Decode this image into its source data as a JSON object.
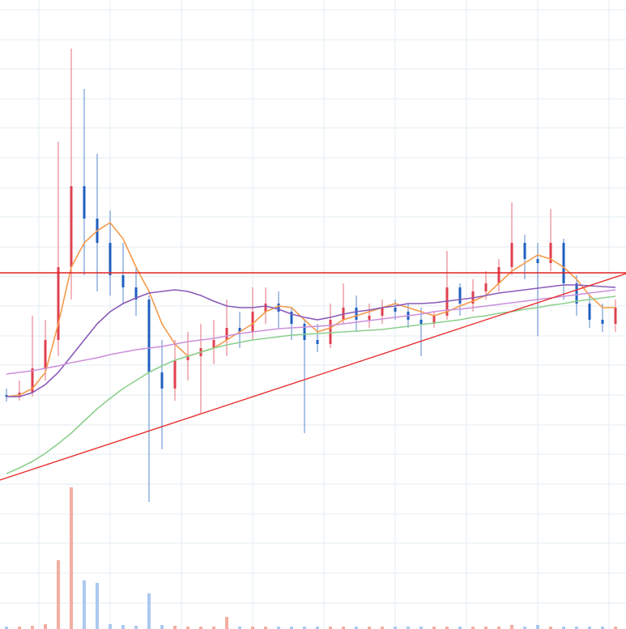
{
  "chart_data": {
    "type": "candlestick",
    "categories": [
      null,
      null,
      null,
      null,
      null,
      null,
      null,
      null,
      null,
      null,
      null,
      null,
      null,
      null,
      null,
      null,
      null,
      null,
      null,
      null,
      null,
      null,
      null,
      null,
      null,
      null,
      null,
      null,
      null,
      null,
      null,
      null,
      null,
      null,
      null,
      null,
      null,
      null,
      null,
      null,
      null,
      null,
      null,
      null,
      null,
      null,
      null,
      null
    ],
    "open": [
      289,
      287,
      292,
      322,
      357,
      447,
      547,
      507,
      477,
      437,
      422,
      407,
      317,
      297,
      332,
      337,
      347,
      357,
      372,
      367,
      392,
      402,
      392,
      377,
      357,
      352,
      382,
      397,
      382,
      387,
      397,
      392,
      382,
      377,
      387,
      422,
      402,
      417,
      427,
      447,
      477,
      457,
      452,
      477,
      427,
      402,
      382,
      377
    ],
    "high": [
      297,
      307,
      387,
      382,
      602,
      717,
      667,
      587,
      517,
      477,
      447,
      412,
      357,
      357,
      367,
      377,
      382,
      407,
      392,
      422,
      422,
      417,
      397,
      382,
      377,
      402,
      427,
      412,
      402,
      407,
      407,
      402,
      397,
      392,
      467,
      427,
      432,
      442,
      457,
      527,
      487,
      477,
      519,
      482,
      437,
      412,
      402,
      407
    ],
    "low": [
      281,
      282,
      287,
      307,
      337,
      407,
      437,
      417,
      412,
      402,
      387,
      157,
      222,
      282,
      307,
      267,
      327,
      337,
      347,
      357,
      377,
      372,
      357,
      242,
      342,
      347,
      377,
      367,
      372,
      377,
      382,
      372,
      337,
      372,
      382,
      387,
      392,
      407,
      417,
      437,
      432,
      362,
      442,
      407,
      387,
      372,
      367,
      367
    ],
    "close": [
      287,
      292,
      322,
      357,
      447,
      547,
      507,
      477,
      437,
      422,
      407,
      317,
      297,
      332,
      337,
      347,
      357,
      372,
      367,
      392,
      402,
      392,
      377,
      357,
      352,
      382,
      397,
      382,
      387,
      397,
      392,
      382,
      377,
      387,
      422,
      402,
      417,
      427,
      447,
      477,
      457,
      452,
      477,
      427,
      402,
      382,
      377,
      397
    ],
    "up_color": "#e0404f",
    "down_color": "#1f5fc0",
    "volume": [
      3,
      3,
      4,
      6,
      85,
      175,
      60,
      57,
      6,
      5,
      4,
      44,
      5,
      4,
      3,
      3,
      3,
      15,
      3,
      3,
      3,
      3,
      3,
      3,
      3,
      3,
      3,
      3,
      3,
      3,
      3,
      3,
      3,
      3,
      3,
      3,
      3,
      3,
      3,
      5,
      3,
      5,
      3,
      3,
      3,
      3,
      3,
      3
    ],
    "volume_up_color": "#f0a090",
    "volume_down_color": "#9ec0ec",
    "series": [
      {
        "color": "#f59a4a",
        "values": [
          287,
          289,
          297,
          317,
          377,
          447,
          477,
          492,
          502,
          482,
          447,
          417,
          377,
          352,
          337,
          342,
          347,
          357,
          367,
          377,
          392,
          399,
          397,
          382,
          367,
          372,
          382,
          387,
          392,
          397,
          402,
          397,
          392,
          387,
          392,
          399,
          405,
          412,
          427,
          442,
          452,
          462,
          457,
          447,
          432,
          412,
          397,
          397
        ]
      },
      {
        "color": "#8a5ab8",
        "values": [
          287,
          287,
          292,
          302,
          317,
          337,
          357,
          377,
          392,
          402,
          409,
          415,
          417,
          419,
          417,
          412,
          405,
          399,
          397,
          397,
          399,
          395,
          389,
          385,
          382,
          385,
          389,
          392,
          394,
          397,
          399,
          402,
          402,
          403,
          405,
          407,
          409,
          412,
          415,
          417,
          419,
          421,
          423,
          425,
          425,
          424,
          423,
          422
        ]
      },
      {
        "color": "#cc90dc",
        "values": [
          315,
          317,
          319,
          322,
          325,
          329,
          332,
          335,
          339,
          342,
          345,
          347,
          349,
          352,
          355,
          357,
          359,
          362,
          365,
          367,
          369,
          371,
          372,
          373,
          374,
          375,
          377,
          379,
          381,
          383,
          385,
          387,
          389,
          392,
          394,
          395,
          397,
          399,
          401,
          403,
          405,
          407,
          409,
          411,
          413,
          415,
          417,
          419
        ]
      },
      {
        "color": "#8cd08c",
        "values": [
          192,
          199,
          207,
          217,
          229,
          242,
          257,
          272,
          285,
          297,
          307,
          317,
          325,
          332,
          337,
          342,
          347,
          351,
          354,
          357,
          359,
          361,
          363,
          364,
          365,
          366,
          367,
          368,
          369,
          370,
          372,
          374,
          376,
          378,
          380,
          382,
          385,
          387,
          390,
          392,
          395,
          397,
          400,
          402,
          405,
          407,
          409,
          411
        ]
      }
    ],
    "horizontal_line": {
      "value": 440,
      "color": "#e02020"
    },
    "trend_line": {
      "values": [
        184,
        439
      ],
      "color": "#e83030"
    },
    "ylim": [
      0,
      777
    ],
    "yticks": [
      765,
      728,
      692,
      655,
      619,
      582,
      545,
      509,
      472,
      435,
      399,
      362,
      326,
      289,
      252,
      216,
      179,
      142,
      106,
      69,
      32
    ],
    "xticks": [
      2.5,
      8,
      13.5,
      19,
      24.5,
      30,
      35.5,
      41,
      46.5
    ],
    "grid": true
  }
}
